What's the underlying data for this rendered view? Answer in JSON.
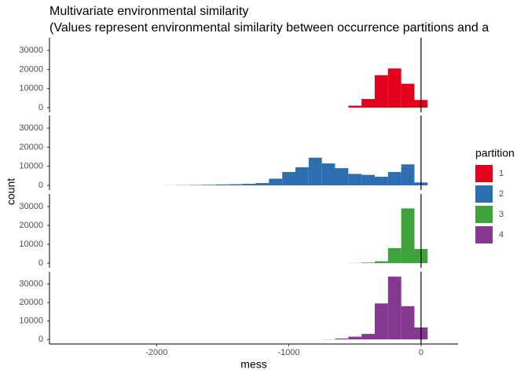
{
  "chart_data": {
    "type": "histogram",
    "title": "Multivariate environmental similarity",
    "subtitle": "(Values represent environmental similarity between occurrence partitions and a",
    "x_label": "mess",
    "y_label": "count",
    "legend_title": "partition",
    "bins": [
      -1950,
      -1850,
      -1750,
      -1650,
      -1550,
      -1450,
      -1350,
      -1250,
      -1150,
      -1050,
      -950,
      -850,
      -750,
      -650,
      -550,
      -450,
      -350,
      -250,
      -150,
      -50,
      50
    ],
    "series": [
      {
        "name": "1",
        "color": "#e2001a",
        "values": [
          0,
          0,
          0,
          0,
          0,
          0,
          0,
          0,
          0,
          0,
          0,
          0,
          0,
          0,
          1000,
          4500,
          17000,
          20500,
          12500,
          4000
        ]
      },
      {
        "name": "2",
        "color": "#2c6eb0",
        "values": [
          50,
          100,
          200,
          300,
          500,
          600,
          800,
          1200,
          3500,
          7000,
          9500,
          14500,
          11500,
          9000,
          6000,
          5500,
          4500,
          7000,
          11000,
          1500
        ]
      },
      {
        "name": "3",
        "color": "#3fa33b",
        "values": [
          0,
          0,
          0,
          0,
          0,
          0,
          0,
          0,
          0,
          0,
          0,
          0,
          0,
          0,
          100,
          300,
          1000,
          8000,
          29000,
          7500
        ]
      },
      {
        "name": "4",
        "color": "#84388f",
        "values": [
          0,
          0,
          0,
          0,
          0,
          0,
          0,
          0,
          0,
          0,
          0,
          0,
          100,
          500,
          1500,
          3000,
          19500,
          34000,
          18000,
          6500
        ]
      }
    ],
    "vline": 0,
    "xlim": [
      -2810,
      280
    ],
    "xticks": [
      -2000,
      -1000,
      0
    ],
    "ylim": [
      -2470,
      36630
    ],
    "yticks": [
      0,
      10000,
      20000,
      30000
    ]
  }
}
